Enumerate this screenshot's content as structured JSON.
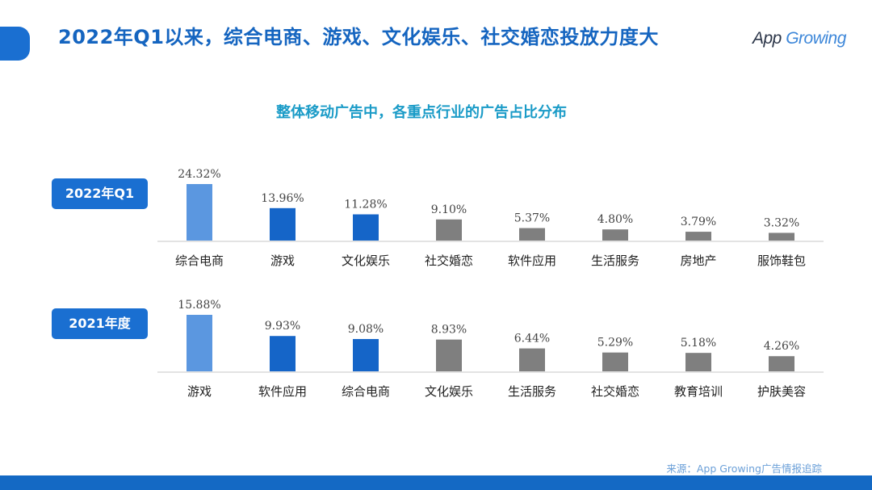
{
  "header": {
    "title": "2022年Q1以来，综合电商、游戏、文化娱乐、社交婚恋投放力度大",
    "logo_text": "App Growing"
  },
  "subtitle": "整体移动广告中，各重点行业的广告占比分布",
  "source": "来源：App Growing广告情报追踪",
  "colors": {
    "highlight_light": "#5b97e0",
    "highlight": "#1565c8",
    "other": "#7f7f7f",
    "accent": "#1a6fd1"
  },
  "chart_data": [
    {
      "type": "bar",
      "label": "2022年Q1",
      "categories": [
        "综合电商",
        "游戏",
        "文化娱乐",
        "社交婚恋",
        "软件应用",
        "生活服务",
        "房地产",
        "服饰鞋包"
      ],
      "values": [
        24.32,
        13.96,
        11.28,
        9.1,
        5.37,
        4.8,
        3.79,
        3.32
      ],
      "data_labels": [
        "24.32%",
        "13.96%",
        "11.28%",
        "9.10%",
        "5.37%",
        "4.80%",
        "3.79%",
        "3.32%"
      ],
      "grid": false
    },
    {
      "type": "bar",
      "label": "2021年度",
      "categories": [
        "游戏",
        "软件应用",
        "综合电商",
        "文化娱乐",
        "生活服务",
        "社交婚恋",
        "教育培训",
        "护肤美容"
      ],
      "values": [
        15.88,
        9.93,
        9.08,
        8.93,
        6.44,
        5.29,
        5.18,
        4.26
      ],
      "data_labels": [
        "15.88%",
        "9.93%",
        "9.08%",
        "8.93%",
        "6.44%",
        "5.29%",
        "5.18%",
        "4.26%"
      ],
      "grid": false
    }
  ]
}
